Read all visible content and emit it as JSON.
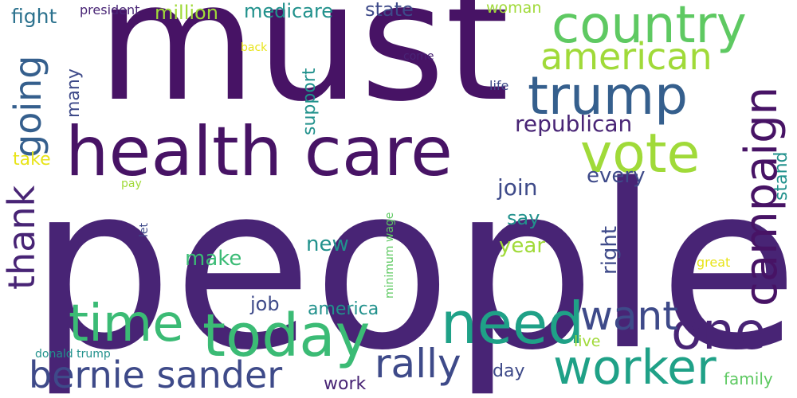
{
  "palette": {
    "dark_purple": "#471365",
    "purple": "#482475",
    "indigo": "#3e4a89",
    "slate_blue": "#355f8d",
    "teal_blue": "#2c728e",
    "teal": "#21918c",
    "sea_green": "#1fa187",
    "green": "#3bbb75",
    "light_green": "#5ec962",
    "lime": "#a0da39",
    "yellow": "#e8e419"
  },
  "words": {
    "people": "people",
    "must": "must",
    "health_care": "health care",
    "country": "country",
    "american": "american",
    "trump": "trump",
    "vote": "vote",
    "campaign": "campaign",
    "today": "today",
    "need": "need",
    "time": "time",
    "one": "one",
    "worker": "worker",
    "bernie_sander": "bernie sander",
    "rally": "rally",
    "want": "want",
    "going": "going",
    "thank": "thank",
    "republican": "republican",
    "medicare": "medicare",
    "million": "million",
    "state": "state",
    "woman": "woman",
    "fight": "fight",
    "president": "president",
    "back": "back",
    "come": "come",
    "life": "life",
    "support": "support",
    "many": "many",
    "take": "take",
    "join": "join",
    "every": "every",
    "stand": "stand",
    "say": "say",
    "right": "right",
    "make": "make",
    "new": "new",
    "year": "year",
    "pay": "pay",
    "let": "let",
    "minimum_wage": "minimum wage",
    "great": "great",
    "job": "job",
    "america": "america",
    "donald_trump": "donald trump",
    "live": "live",
    "day": "day",
    "work": "work",
    "family": "family"
  }
}
